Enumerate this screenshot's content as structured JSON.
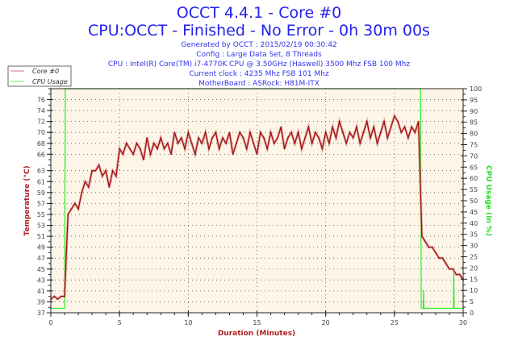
{
  "chart_data": {
    "type": "line",
    "title": "OCCT 4.4.1 - Core #0",
    "subtitle": "CPU:OCCT - Finished - No Error - 0h 30m 00s",
    "info_lines": [
      "Generated by OCCT : 2015/02/19 00:30:42",
      "Config : Large Data Set, 8 Threads",
      "CPU : Intel(R) Core(TM) i7-4770K CPU @ 3.50GHz (Haswell) 3500 Mhz FSB 100 Mhz",
      "Current clock : 4235 Mhz FSB 101 Mhz",
      "MotherBoard : ASRock: H81M-ITX"
    ],
    "xlabel": "Duration (Minutes)",
    "ylabel": "Temperature (°C)",
    "y2label": "CPU Usage (in %)",
    "xlim": [
      0,
      30
    ],
    "ylim": [
      37,
      78
    ],
    "y2lim": [
      0,
      100
    ],
    "x_ticks": [
      "0",
      "5",
      "10",
      "15",
      "20",
      "25",
      "30"
    ],
    "y_ticks": [
      "37",
      "39",
      "41",
      "43",
      "45",
      "47",
      "49",
      "51",
      "53",
      "55",
      "57",
      "59",
      "61",
      "63",
      "66",
      "68",
      "70",
      "72",
      "74",
      "76"
    ],
    "y2_ticks": [
      "0",
      "5",
      "10",
      "15",
      "20",
      "25",
      "30",
      "35",
      "40",
      "45",
      "50",
      "55",
      "60",
      "65",
      "70",
      "75",
      "80",
      "85",
      "90",
      "95",
      "100"
    ],
    "grid": true,
    "legend_position": "top-left",
    "colors": {
      "core": "#a01010",
      "cpu": "#22ee22",
      "plot_bg": "#fdf6e8",
      "title": "#2222ee"
    },
    "series": [
      {
        "name": "Core #0",
        "axis": "left",
        "x_start": 0,
        "x_step": 0.25,
        "values": [
          39.5,
          40,
          39.5,
          40,
          40,
          55,
          56,
          57,
          56,
          59,
          61,
          60,
          63,
          63,
          64,
          62,
          63,
          60,
          63,
          62,
          67,
          66,
          68,
          67,
          66,
          68,
          67,
          65,
          69,
          66,
          68,
          67,
          69,
          67,
          68,
          66,
          70,
          68,
          69,
          67,
          70,
          68,
          66,
          69,
          68,
          70,
          67,
          69,
          70,
          67,
          69,
          68,
          70,
          66,
          68,
          70,
          69,
          67,
          70,
          68,
          66,
          70,
          69,
          67,
          70,
          68,
          69,
          71,
          67,
          69,
          70,
          68,
          70,
          67,
          69,
          71,
          68,
          70,
          69,
          67,
          70,
          68,
          71,
          69,
          72,
          70,
          68,
          70,
          69,
          71,
          68,
          70,
          72,
          69,
          71,
          68,
          70,
          72,
          69,
          71,
          73,
          72,
          70,
          71,
          69,
          71,
          70,
          72,
          51,
          50,
          49,
          49,
          48,
          47,
          47,
          46,
          45,
          45,
          44,
          44,
          43
        ]
      },
      {
        "name": "CPU Usage",
        "axis": "right",
        "points": [
          [
            0,
            2
          ],
          [
            1.0,
            2
          ],
          [
            1.05,
            100
          ],
          [
            26.9,
            100
          ],
          [
            26.95,
            2
          ],
          [
            27.1,
            2
          ],
          [
            27.12,
            10
          ],
          [
            27.15,
            2
          ],
          [
            29.3,
            2
          ],
          [
            29.32,
            18
          ],
          [
            29.35,
            2
          ],
          [
            30,
            2
          ]
        ]
      }
    ]
  }
}
